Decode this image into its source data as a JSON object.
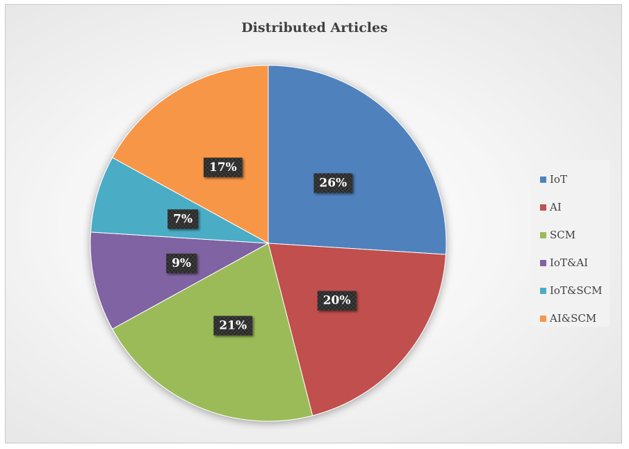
{
  "chart_data": {
    "type": "pie",
    "title": "Distributed Articles",
    "categories": [
      "IoT",
      "AI",
      "SCM",
      "IoT&AI",
      "IoT&SCM",
      "AI&SCM"
    ],
    "values": [
      26,
      20,
      21,
      9,
      7,
      17
    ],
    "labels": [
      "26%",
      "20%",
      "21%",
      "9%",
      "7%",
      "17%"
    ],
    "colors": [
      "#4f81bd",
      "#c0504d",
      "#9bbb59",
      "#8064a2",
      "#4bacc6",
      "#f79646"
    ],
    "legend_position": "right",
    "start_angle": "top",
    "direction": "clockwise"
  }
}
